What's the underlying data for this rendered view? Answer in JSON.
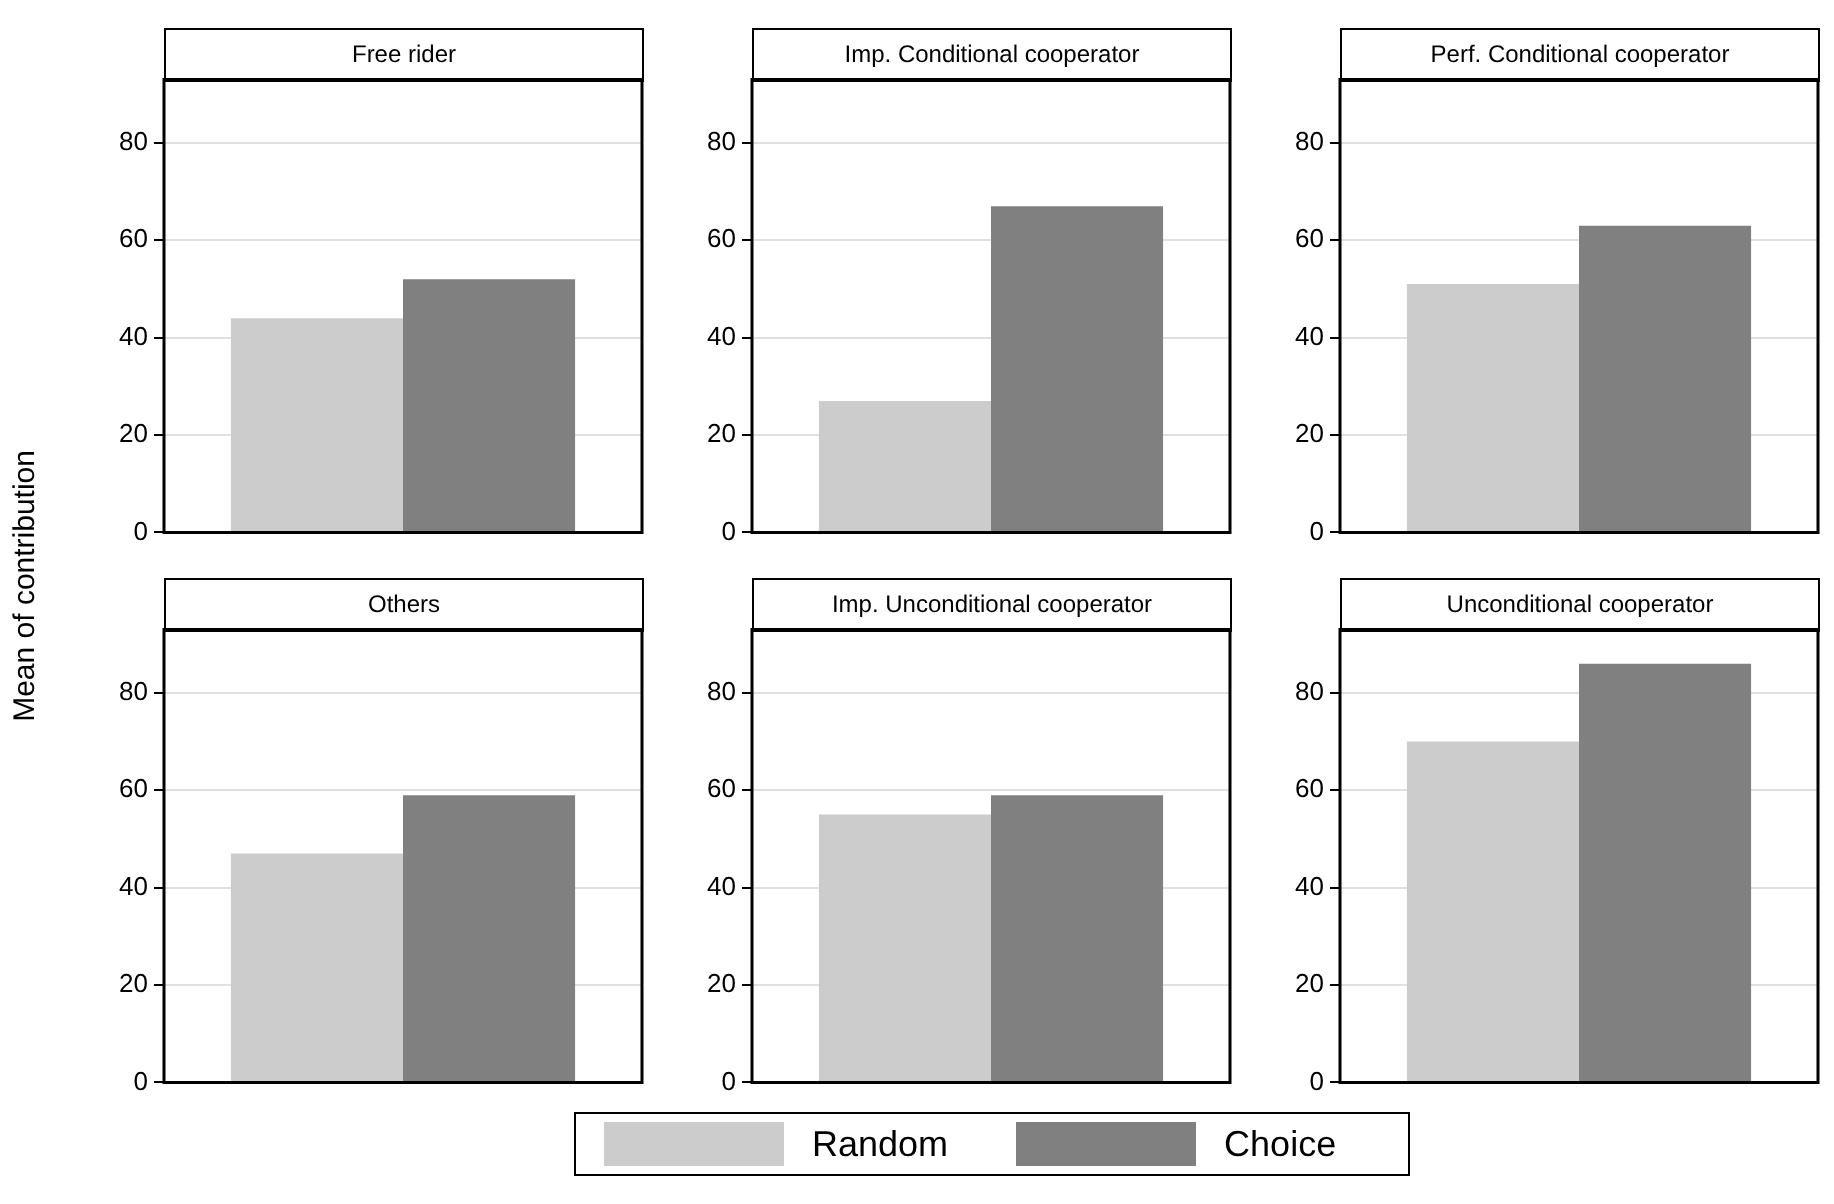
{
  "chart_data": [
    {
      "type": "bar",
      "title": "Free rider",
      "ylabel": "Mean of contribution",
      "categories": [
        null
      ],
      "series": [
        {
          "name": "Random",
          "color": "#cccccc",
          "values": [
            44
          ]
        },
        {
          "name": "Choice",
          "color": "#808080",
          "values": [
            52
          ]
        }
      ],
      "ylim": [
        0,
        93
      ],
      "yticks": [
        0,
        20,
        40,
        60,
        80
      ],
      "grid": "y",
      "tick_labels": "y",
      "legend": "bottom"
    },
    {
      "type": "bar",
      "title": "Imp. Conditional cooperator",
      "categories": [
        null
      ],
      "series": [
        {
          "name": "Random",
          "color": "#cccccc",
          "values": [
            27
          ]
        },
        {
          "name": "Choice",
          "color": "#808080",
          "values": [
            67
          ]
        }
      ],
      "ylim": [
        0,
        93
      ],
      "yticks": [
        0,
        20,
        40,
        60,
        80
      ],
      "grid": "y",
      "tick_labels": "y"
    },
    {
      "type": "bar",
      "title": "Perf. Conditional cooperator",
      "categories": [
        null
      ],
      "series": [
        {
          "name": "Random",
          "color": "#cccccc",
          "values": [
            51
          ]
        },
        {
          "name": "Choice",
          "color": "#808080",
          "values": [
            63
          ]
        }
      ],
      "ylim": [
        0,
        93
      ],
      "yticks": [
        0,
        20,
        40,
        60,
        80
      ],
      "grid": "y",
      "tick_labels": "y"
    },
    {
      "type": "bar",
      "title": "Others",
      "categories": [
        null
      ],
      "series": [
        {
          "name": "Random",
          "color": "#cccccc",
          "values": [
            47
          ]
        },
        {
          "name": "Choice",
          "color": "#808080",
          "values": [
            59
          ]
        }
      ],
      "ylim": [
        0,
        93
      ],
      "yticks": [
        0,
        20,
        40,
        60,
        80
      ],
      "grid": "y",
      "tick_labels": "y"
    },
    {
      "type": "bar",
      "title": "Imp. Unconditional cooperator",
      "categories": [
        null
      ],
      "series": [
        {
          "name": "Random",
          "color": "#cccccc",
          "values": [
            55
          ]
        },
        {
          "name": "Choice",
          "color": "#808080",
          "values": [
            59
          ]
        }
      ],
      "ylim": [
        0,
        93
      ],
      "yticks": [
        0,
        20,
        40,
        60,
        80
      ],
      "grid": "y",
      "tick_labels": "y"
    },
    {
      "type": "bar",
      "title": "Unconditional cooperator",
      "categories": [
        null
      ],
      "series": [
        {
          "name": "Random",
          "color": "#cccccc",
          "values": [
            70
          ]
        },
        {
          "name": "Choice",
          "color": "#808080",
          "values": [
            86
          ]
        }
      ],
      "ylim": [
        0,
        93
      ],
      "yticks": [
        0,
        20,
        40,
        60,
        80
      ],
      "grid": "y",
      "tick_labels": "y"
    }
  ]
}
